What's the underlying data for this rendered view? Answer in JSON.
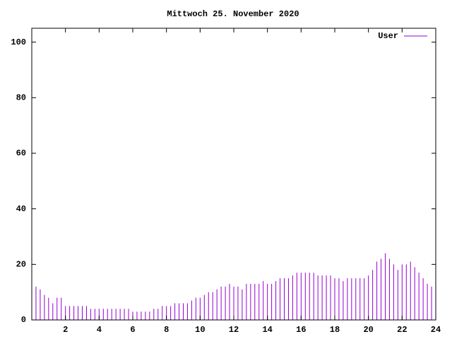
{
  "chart_data": {
    "type": "impulses",
    "title": "Mittwoch 25. November 2020",
    "x": [
      0,
      0.25,
      0.5,
      0.75,
      1,
      1.25,
      1.5,
      1.75,
      2,
      2.25,
      2.5,
      2.75,
      3,
      3.25,
      3.5,
      3.75,
      4,
      4.25,
      4.5,
      4.75,
      5,
      5.25,
      5.5,
      5.75,
      6,
      6.25,
      6.5,
      6.75,
      7,
      7.25,
      7.5,
      7.75,
      8,
      8.25,
      8.5,
      8.75,
      9,
      9.25,
      9.5,
      9.75,
      10,
      10.25,
      10.5,
      10.75,
      11,
      11.25,
      11.5,
      11.75,
      12,
      12.25,
      12.5,
      12.75,
      13,
      13.25,
      13.5,
      13.75,
      14,
      14.25,
      14.5,
      14.75,
      15,
      15.25,
      15.5,
      15.75,
      16,
      16.25,
      16.5,
      16.75,
      17,
      17.25,
      17.5,
      17.75,
      18,
      18.25,
      18.5,
      18.75,
      19,
      19.25,
      19.5,
      19.75,
      20,
      20.25,
      20.5,
      20.75,
      21,
      21.25,
      21.5,
      21.75,
      22,
      22.25,
      22.5,
      22.75,
      23,
      23.25,
      23.5,
      23.75
    ],
    "series": [
      {
        "name": "User",
        "color": "#9400d3",
        "values": [
          12,
          12,
          11,
          9,
          8,
          6,
          8,
          8,
          5,
          5,
          5,
          5,
          5,
          5,
          4,
          4,
          4,
          4,
          4,
          4,
          4,
          4,
          4,
          4,
          3,
          3,
          3,
          3,
          3,
          4,
          4,
          5,
          5,
          5,
          6,
          6,
          6,
          6,
          7,
          8,
          8,
          9,
          10,
          10,
          11,
          12,
          12,
          13,
          12,
          12,
          11,
          13,
          13,
          13,
          13,
          14,
          13,
          13,
          14,
          15,
          15,
          15,
          16,
          17,
          17,
          17,
          17,
          17,
          16,
          16,
          16,
          16,
          15,
          15,
          14,
          15,
          15,
          15,
          15,
          15,
          16,
          18,
          21,
          22,
          24,
          22,
          20,
          18,
          20,
          20,
          21,
          19,
          17,
          15,
          13,
          12
        ]
      }
    ],
    "xlim": [
      0,
      24
    ],
    "xticks": [
      2,
      4,
      6,
      8,
      10,
      12,
      14,
      16,
      18,
      20,
      22,
      24
    ],
    "ylim": [
      0,
      105
    ],
    "yticks": [
      0,
      20,
      40,
      60,
      80,
      100
    ],
    "legend": "top-right"
  }
}
